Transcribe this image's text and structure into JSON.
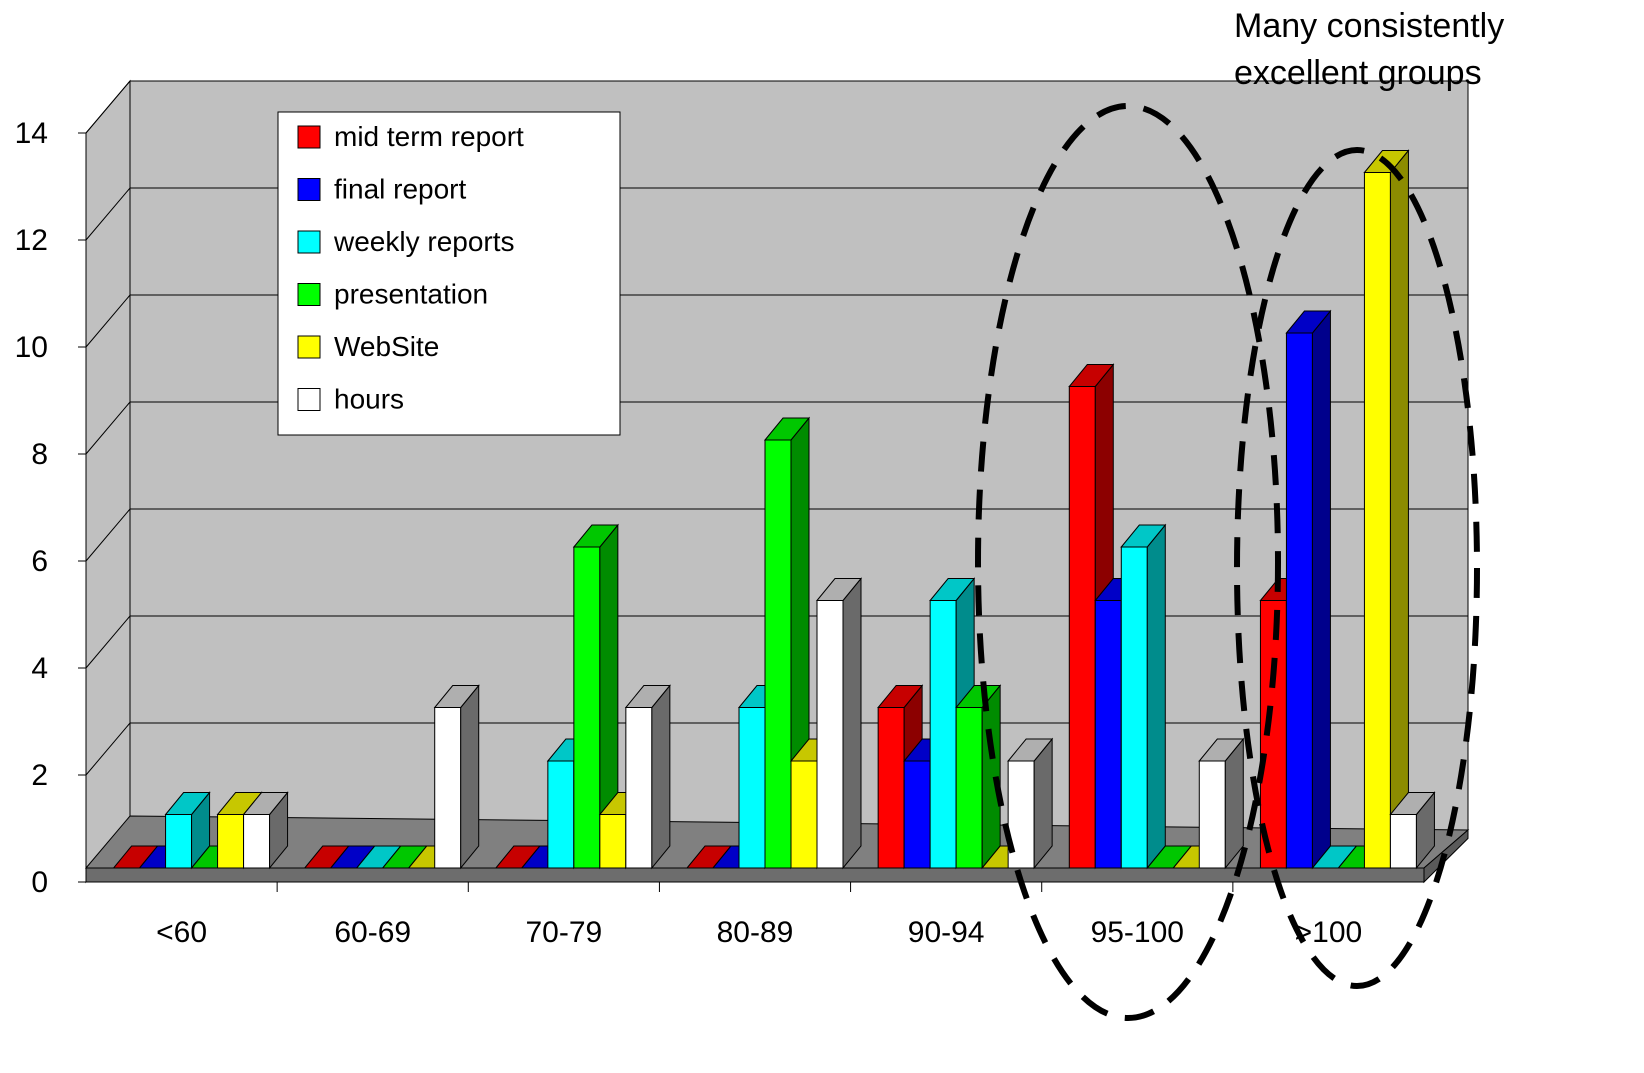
{
  "chart_data": {
    "type": "bar",
    "categories": [
      "<60",
      "60-69",
      "70-79",
      "80-89",
      "90-94",
      "95-100",
      ">100"
    ],
    "series": [
      {
        "name": "mid term report",
        "values": [
          0,
          0,
          0,
          0,
          3,
          9,
          5
        ]
      },
      {
        "name": "final report",
        "values": [
          0,
          0,
          0,
          0,
          2,
          5,
          10
        ]
      },
      {
        "name": "weekly reports",
        "values": [
          1,
          0,
          2,
          3,
          5,
          6,
          0
        ]
      },
      {
        "name": "presentation",
        "values": [
          0,
          0,
          6,
          8,
          3,
          0,
          0
        ]
      },
      {
        "name": "WebSite",
        "values": [
          1,
          0,
          1,
          2,
          0,
          0,
          13
        ]
      },
      {
        "name": "hours",
        "values": [
          1,
          3,
          3,
          5,
          2,
          2,
          1
        ]
      }
    ],
    "title": "",
    "xlabel": "",
    "ylabel": "",
    "ylim": [
      0,
      14
    ],
    "yticks": [
      "0",
      "2",
      "4",
      "6",
      "8",
      "10",
      "12",
      "14"
    ],
    "grid": true,
    "legend_position": "top-left",
    "annotation": {
      "line1": "Many consistently",
      "line2": "excellent groups"
    },
    "colors": {
      "mid term report": "#ff0000",
      "final report": "#0000ff",
      "weekly reports": "#00ffff",
      "presentation": "#00ff00",
      "WebSite": "#ffff00",
      "hours": "#ffffff",
      "plot_wall": "#c0c0c0",
      "plot_floor": "#808080"
    }
  }
}
